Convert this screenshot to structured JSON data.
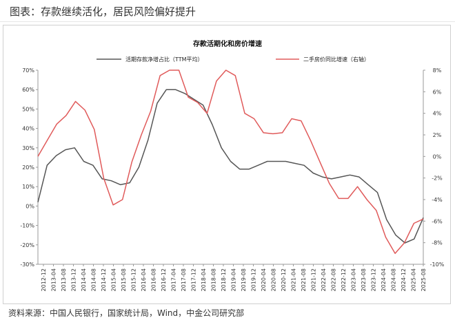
{
  "caption": "图表：存款继续活化，居民风险偏好提升",
  "source": "资料来源：中国人民银行，国家统计局，Wind，中金公司研究部",
  "colors": {
    "series1": "#555555",
    "series2": "#e05a5a",
    "axis": "#999999"
  },
  "chart_data": {
    "type": "line",
    "title": "存款活期化和房价增速",
    "x_ticks": [
      "2012-12",
      "2013-04",
      "2013-08",
      "2013-12",
      "2014-04",
      "2014-08",
      "2014-12",
      "2015-04",
      "2015-08",
      "2015-12",
      "2016-04",
      "2016-08",
      "2016-12",
      "2017-04",
      "2017-08",
      "2017-12",
      "2018-04",
      "2018-08",
      "2018-12",
      "2019-04",
      "2019-08",
      "2019-12",
      "2020-04",
      "2020-08",
      "2020-12",
      "2021-04",
      "2021-08",
      "2021-12",
      "2022-04",
      "2022-08",
      "2022-12",
      "2023-04",
      "2023-08",
      "2023-12",
      "2024-04",
      "2024-08",
      "2024-12",
      "2025-04",
      "2025-08"
    ],
    "y_left": {
      "min": -30,
      "max": 70,
      "step": 10,
      "ticks": [
        "70%",
        "60%",
        "50%",
        "40%",
        "30%",
        "20%",
        "10%",
        "0%",
        "-10%",
        "-20%",
        "-30%"
      ]
    },
    "y_right": {
      "min": -10,
      "max": 8,
      "step": 2,
      "ticks": [
        "8%",
        "6%",
        "4%",
        "2%",
        "0%",
        "-2%",
        "-4%",
        "-6%",
        "-8%",
        "-10%"
      ]
    },
    "series": [
      {
        "name": "活期存款净增占比（TTM平均）",
        "axis": "left",
        "values": [
          2,
          21,
          26,
          29,
          30,
          23,
          21,
          14,
          13,
          11,
          12,
          20,
          34,
          53,
          60,
          60,
          58,
          55,
          52,
          42,
          30,
          23,
          19,
          19,
          21,
          23,
          23,
          23,
          22,
          21,
          17,
          15,
          14,
          15,
          16,
          15,
          11,
          7,
          -7,
          -15,
          -19,
          -17,
          -6
        ]
      },
      {
        "name": "二手房价同比增速（右轴）",
        "axis": "right",
        "values": [
          0,
          1.5,
          3,
          3.8,
          5.1,
          4.3,
          2.5,
          -2,
          -4.5,
          -4,
          -0.5,
          2,
          4.2,
          7.5,
          8,
          8,
          5.5,
          5,
          4,
          7,
          8,
          7.5,
          4,
          3.5,
          2.2,
          2.1,
          2.2,
          3.5,
          3.3,
          1.5,
          -0.5,
          -2.5,
          -3.9,
          -3.9,
          -2.8,
          -4,
          -5,
          -7.5,
          -9,
          -8,
          -6.2,
          -5.8
        ]
      }
    ],
    "legend_position": "top"
  }
}
